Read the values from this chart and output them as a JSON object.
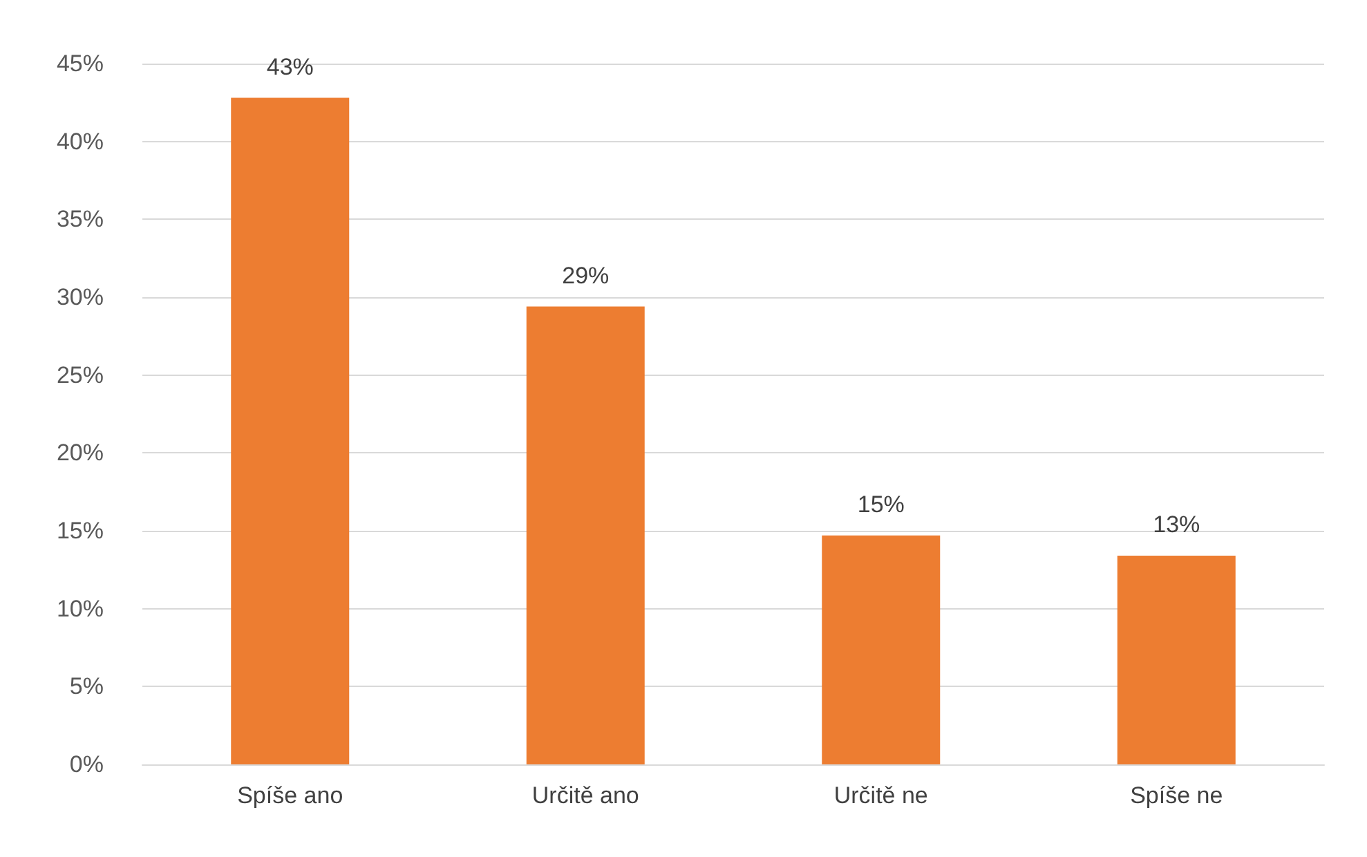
{
  "chart_data": {
    "type": "bar",
    "categories": [
      "Spíše ano",
      "Určitě ano",
      "Určitě ne",
      "Spíše ne"
    ],
    "values": [
      42.8,
      29.4,
      14.7,
      13.4
    ],
    "value_labels": [
      "43%",
      "29%",
      "15%",
      "13%"
    ],
    "color": "#ed7d31",
    "ylim": [
      0,
      45
    ],
    "yticks": [
      {
        "value": 0,
        "label": "0%"
      },
      {
        "value": 5,
        "label": "5%"
      },
      {
        "value": 10,
        "label": "10%"
      },
      {
        "value": 15,
        "label": "15%"
      },
      {
        "value": 20,
        "label": "20%"
      },
      {
        "value": 25,
        "label": "25%"
      },
      {
        "value": 30,
        "label": "30%"
      },
      {
        "value": 35,
        "label": "35%"
      },
      {
        "value": 40,
        "label": "40%"
      },
      {
        "value": 45,
        "label": "45%"
      }
    ],
    "grid": "y"
  }
}
